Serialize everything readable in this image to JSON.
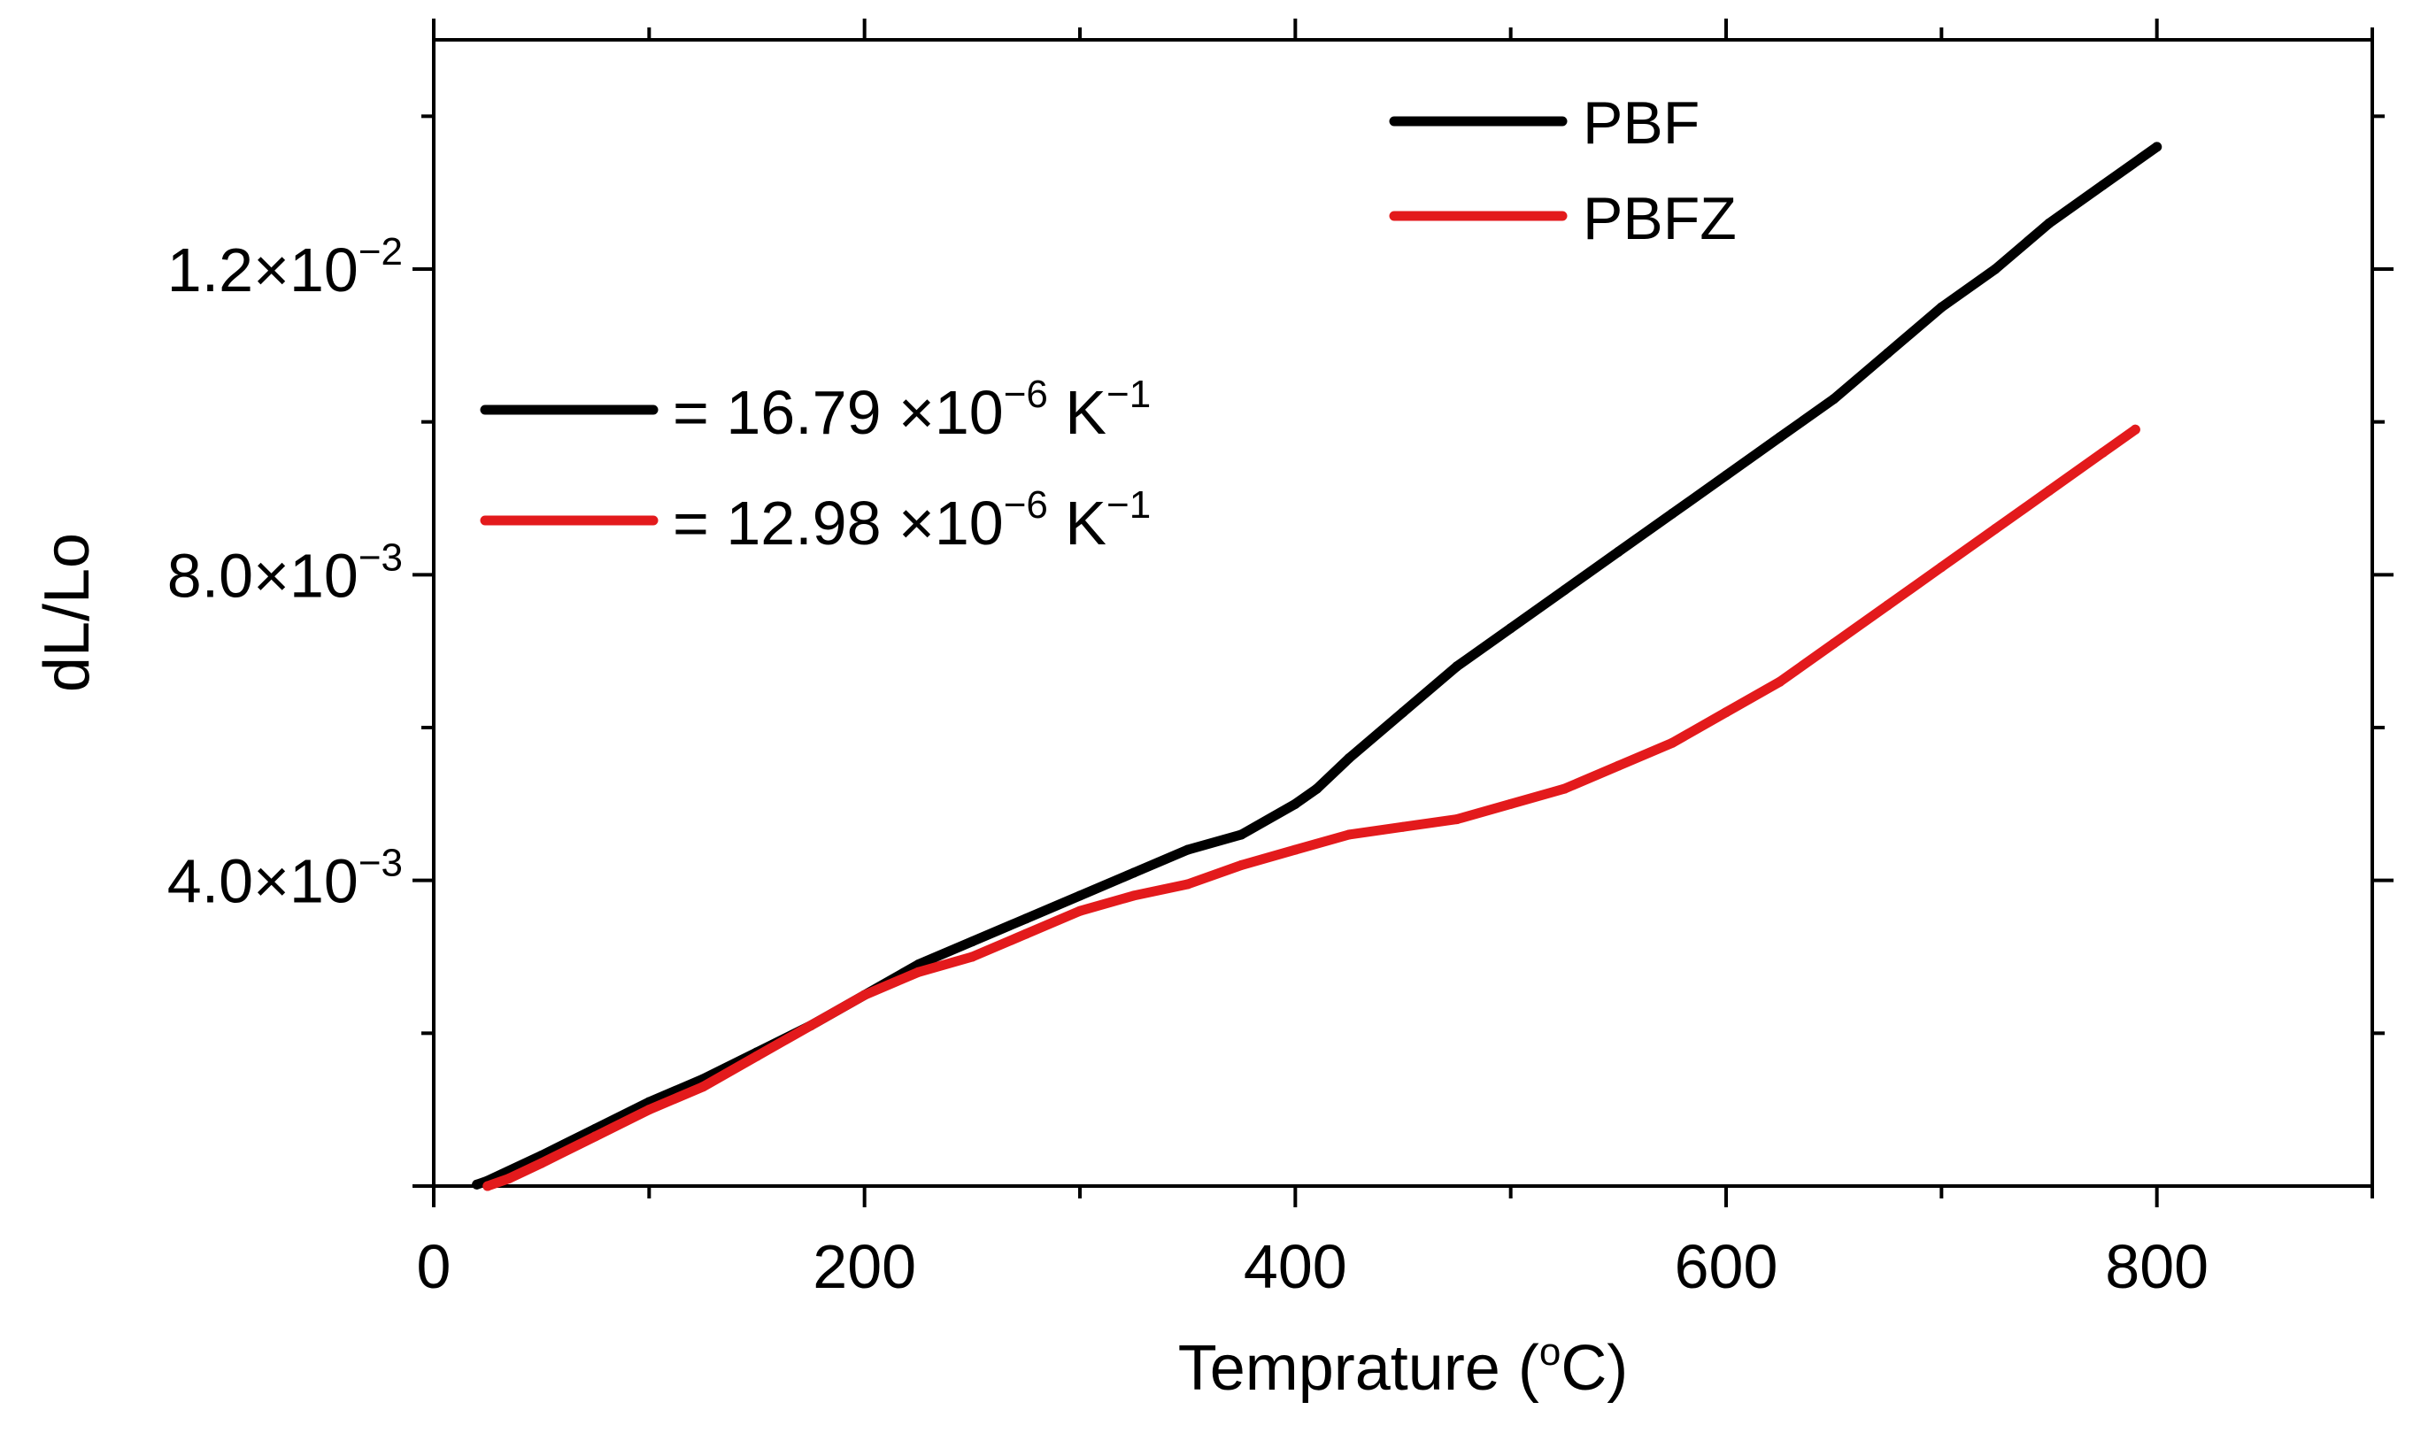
{
  "chart_data": {
    "type": "line",
    "xlabel": "Temprature (",
    "xlabel_sup": "o",
    "xlabel_tail": "C)",
    "ylabel": "dL/Lo",
    "xlim": [
      0,
      900
    ],
    "ylim": [
      0,
      0.015
    ],
    "x_ticks": [
      {
        "value": 0,
        "label": "0"
      },
      {
        "value": 200,
        "label": "200"
      },
      {
        "value": 400,
        "label": "400"
      },
      {
        "value": 600,
        "label": "600"
      },
      {
        "value": 800,
        "label": "800"
      }
    ],
    "x_minor_ticks": [
      100,
      300,
      500,
      700,
      900
    ],
    "y_ticks": [
      {
        "value": 0.004,
        "mantissa": "4.0×10",
        "exp": "−3"
      },
      {
        "value": 0.008,
        "mantissa": "8.0×10",
        "exp": "−3"
      },
      {
        "value": 0.012,
        "mantissa": "1.2×10",
        "exp": "−2"
      }
    ],
    "y_minor_ticks": [
      0.002,
      0.006,
      0.01,
      0.014
    ],
    "series": [
      {
        "name": "PBF",
        "color": "#000000",
        "x": [
          20,
          25,
          50,
          75,
          100,
          125,
          150,
          175,
          200,
          225,
          250,
          275,
          300,
          325,
          350,
          375,
          400,
          410,
          425,
          450,
          475,
          500,
          525,
          550,
          575,
          600,
          625,
          650,
          675,
          700,
          725,
          750,
          775,
          800
        ],
        "y": [
          2e-05,
          7e-05,
          0.0004,
          0.00075,
          0.0011,
          0.0014,
          0.00175,
          0.0021,
          0.0025,
          0.0029,
          0.0032,
          0.0035,
          0.0038,
          0.0041,
          0.0044,
          0.0046,
          0.005,
          0.0052,
          0.0056,
          0.0062,
          0.0068,
          0.0073,
          0.0078,
          0.0083,
          0.0088,
          0.0093,
          0.0098,
          0.0103,
          0.0109,
          0.0115,
          0.012,
          0.0126,
          0.0131,
          0.0136
        ]
      },
      {
        "name": "PBFZ",
        "color": "#e31a1c",
        "x": [
          25,
          35,
          50,
          75,
          100,
          125,
          150,
          175,
          200,
          225,
          250,
          275,
          300,
          325,
          350,
          375,
          400,
          425,
          450,
          475,
          500,
          525,
          550,
          575,
          600,
          625,
          650,
          675,
          700,
          725,
          750,
          775,
          790
        ],
        "y": [
          0.0,
          0.0001,
          0.0003,
          0.00065,
          0.001,
          0.0013,
          0.0017,
          0.0021,
          0.0025,
          0.0028,
          0.003,
          0.0033,
          0.0036,
          0.0038,
          0.00395,
          0.0042,
          0.0044,
          0.0046,
          0.0047,
          0.0048,
          0.005,
          0.0052,
          0.0055,
          0.0058,
          0.0062,
          0.0066,
          0.0071,
          0.0076,
          0.0081,
          0.0086,
          0.0091,
          0.0096,
          0.0099
        ]
      }
    ],
    "legend_position": "top-right",
    "annotations": [
      {
        "series": "PBF",
        "prefix": "= 16.79 ×10",
        "exp": "−6",
        "unit": " K",
        "unit_exp": "−1"
      },
      {
        "series": "PBFZ",
        "prefix": "= 12.98 ×10",
        "exp": "−6",
        "unit": " K",
        "unit_exp": "−1"
      }
    ]
  }
}
